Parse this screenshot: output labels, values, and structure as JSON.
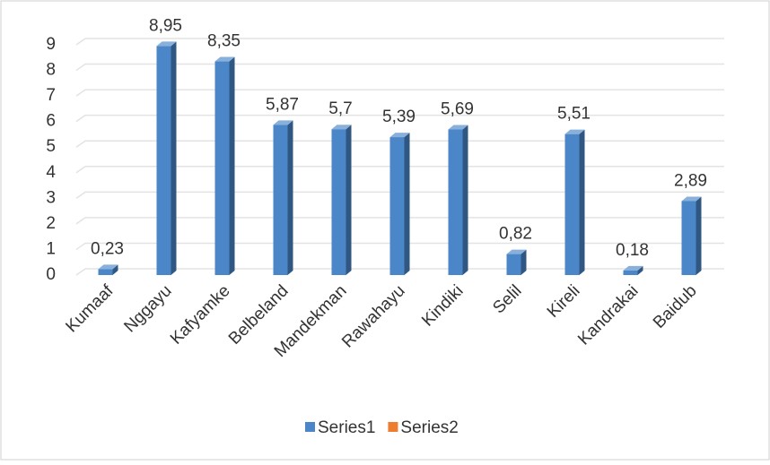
{
  "chart_data": {
    "type": "bar",
    "categories": [
      "Kumaaf",
      "Nggayu",
      "Kafyamke",
      "Belbeland",
      "Mandekman",
      "Rawahayu",
      "Kindiki",
      "Selil",
      "Kireli",
      "Kandrakai",
      "Baidub"
    ],
    "series": [
      {
        "name": "Series1",
        "color": "#4a86c8",
        "values": [
          0.23,
          8.95,
          8.35,
          5.87,
          5.7,
          5.39,
          5.69,
          0.82,
          5.51,
          0.18,
          2.89
        ],
        "value_labels": [
          "0,23",
          "8,95",
          "8,35",
          "5,87",
          "5,7",
          "5,39",
          "5,69",
          "0,82",
          "5,51",
          "0,18",
          "2,89"
        ]
      },
      {
        "name": "Series2",
        "color": "#ed7d31",
        "values": [
          null,
          null,
          null,
          null,
          null,
          null,
          null,
          null,
          null,
          null,
          null
        ]
      }
    ],
    "ylim": [
      0,
      9
    ],
    "yticks": [
      0,
      1,
      2,
      3,
      4,
      5,
      6,
      7,
      8,
      9
    ],
    "grid": true,
    "legend": "bottom"
  }
}
